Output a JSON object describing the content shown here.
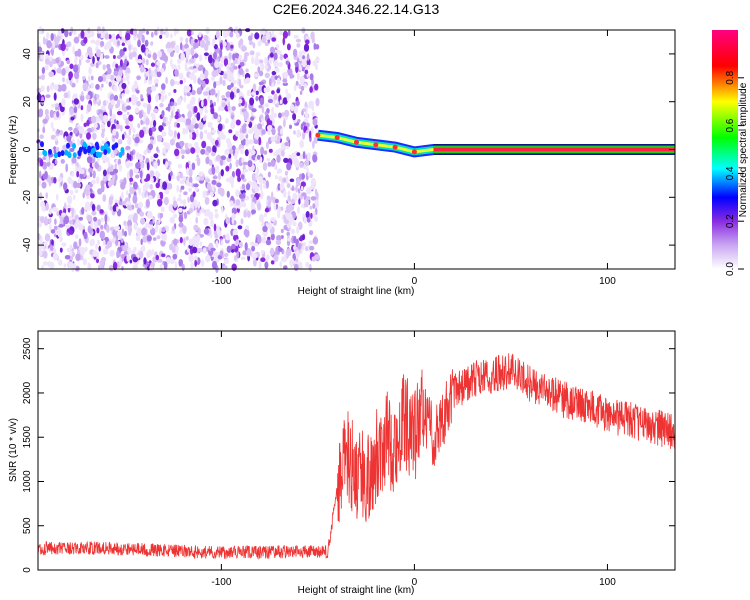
{
  "figure_title": "C2E6.2024.346.22.14.G13",
  "colors": {
    "snr_line": "#ee3333",
    "scatter_noise": "#7a2bd6",
    "axis": "#000000"
  },
  "chart_data": [
    {
      "type": "heatmap",
      "title": "C2E6.2024.346.22.14.G13",
      "xlabel": "Height of straight line (km)",
      "ylabel": "Frequency (Hz)",
      "xlim": [
        -195,
        135
      ],
      "ylim": [
        -50,
        50
      ],
      "x_ticks": [
        -100,
        0,
        100
      ],
      "y_ticks": [
        -40,
        -20,
        0,
        20,
        40
      ],
      "grid": false,
      "colorbar": {
        "label": "Normalized spectral amplitude",
        "range": [
          0.0,
          1.0
        ],
        "ticks": [
          0.0,
          0.2,
          0.4,
          0.6,
          0.8
        ],
        "tick_labels": [
          "0.0",
          "0.2",
          "0.4",
          "0.6",
          "0.8"
        ],
        "colormap": [
          "#ffffff",
          "#8a2be2",
          "#0000ff",
          "#00ffff",
          "#00ff00",
          "#ffff00",
          "#ff0000",
          "#ff0080"
        ]
      },
      "features": {
        "noise_region_x": [
          -195,
          -50
        ],
        "signal_track": [
          {
            "x": -50,
            "freq": 6
          },
          {
            "x": -40,
            "freq": 5
          },
          {
            "x": -30,
            "freq": 3
          },
          {
            "x": -20,
            "freq": 2
          },
          {
            "x": -10,
            "freq": 1
          },
          {
            "x": 0,
            "freq": -1
          },
          {
            "x": 10,
            "freq": 0
          },
          {
            "x": 135,
            "freq": 0
          }
        ],
        "weak_tone_x": [
          -195,
          -150
        ],
        "weak_tone_freq": 0
      }
    },
    {
      "type": "line",
      "xlabel": "Height of straight line (km)",
      "ylabel": "SNR (10 * v/v)",
      "xlim": [
        -195,
        135
      ],
      "ylim": [
        0,
        2700
      ],
      "x_ticks": [
        -100,
        0,
        100
      ],
      "y_ticks": [
        0,
        500,
        1000,
        1500,
        2000,
        2500
      ],
      "grid": false,
      "series": [
        {
          "x": [
            -195,
            -180,
            -160,
            -140,
            -120,
            -100,
            -80,
            -60,
            -45,
            -40,
            -35,
            -30,
            -25,
            -20,
            -15,
            -10,
            -5,
            0,
            5,
            10,
            15,
            20,
            30,
            40,
            50,
            60,
            70,
            80,
            90,
            100,
            110,
            120,
            135
          ],
          "values": [
            250,
            240,
            250,
            230,
            210,
            200,
            200,
            210,
            200,
            900,
            1300,
            1100,
            1000,
            1300,
            1500,
            1400,
            1700,
            1500,
            1800,
            1500,
            1750,
            2000,
            2150,
            2200,
            2250,
            2100,
            2000,
            1900,
            1850,
            1750,
            1700,
            1650,
            1550
          ],
          "color": "#ee3333"
        }
      ]
    }
  ]
}
